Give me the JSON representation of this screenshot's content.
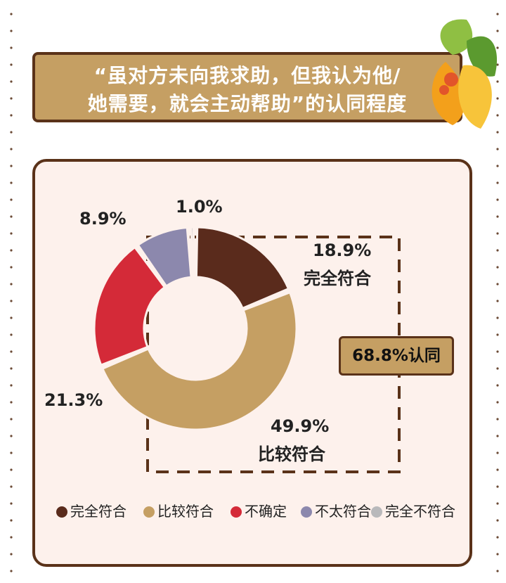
{
  "title": {
    "line1": "“虽对方未向我求助，但我认为他/",
    "line2": "她需要，就会主动帮助”的认同程度"
  },
  "summary_badge": "68.8%认同",
  "chart_data": {
    "type": "pie",
    "style": "donut",
    "categories": [
      "完全符合",
      "比较符合",
      "不确定",
      "不太符合",
      "完全不符合"
    ],
    "values": [
      18.9,
      49.9,
      21.3,
      8.9,
      1.0
    ],
    "value_labels": [
      "18.9%",
      "49.9%",
      "21.3%",
      "8.9%",
      "1.0%"
    ],
    "slice_labels": [
      "完全符合",
      "比较符合",
      "",
      "",
      ""
    ],
    "colors": [
      "#5a2b1c",
      "#c59f63",
      "#d42a38",
      "#8c88ad",
      "#b9b9bb"
    ],
    "legend_position": "bottom"
  }
}
